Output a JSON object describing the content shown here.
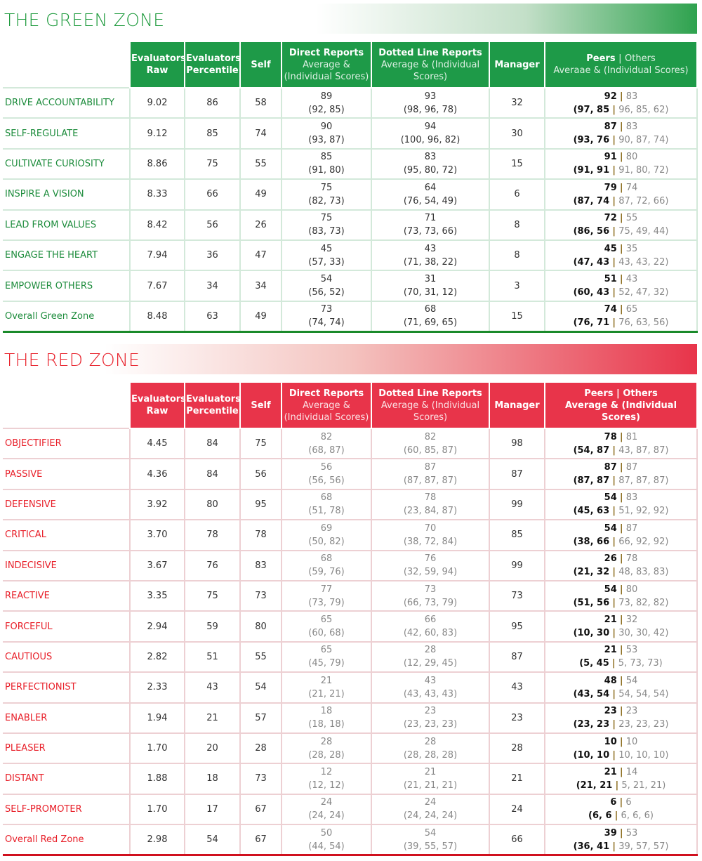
{
  "green_zone": {
    "title": "THE GREEN ZONE",
    "accent": "#1e9a48",
    "headers": {
      "raw": "Evaluators Raw",
      "pct": "Evaluators Percentile",
      "self": "Self",
      "direct": "Direct Reports",
      "direct_sub": "Average & (Individual Scores)",
      "dotted": "Dotted Line Reports",
      "dotted_sub": "Average & (Individual Scores)",
      "manager": "Manager",
      "peers": "Peers",
      "peers_sep": "|",
      "others": "Others",
      "peers_sub": "Averaae & (Individual Scores)"
    },
    "rows": [
      {
        "label": "DRIVE ACCOUNTABILITY",
        "raw": "9.02",
        "pct": "86",
        "self": "58",
        "d_avg": "89",
        "d_ind": "(92, 85)",
        "dl_avg": "93",
        "dl_ind": "(98, 96, 78)",
        "mgr": "32",
        "p_avg": "92",
        "o_avg": "83",
        "p_ind": "(97, 85",
        "o_ind": "96, 85, 62)"
      },
      {
        "label": "SELF-REGULATE",
        "raw": "9.12",
        "pct": "85",
        "self": "74",
        "d_avg": "90",
        "d_ind": "(93, 87)",
        "dl_avg": "94",
        "dl_ind": "(100, 96, 82)",
        "mgr": "30",
        "p_avg": "87",
        "o_avg": "83",
        "p_ind": "(93, 76",
        "o_ind": "90, 87, 74)"
      },
      {
        "label": "CULTIVATE CURIOSITY",
        "raw": "8.86",
        "pct": "75",
        "self": "55",
        "d_avg": "85",
        "d_ind": "(91, 80)",
        "dl_avg": "83",
        "dl_ind": "(95, 80, 72)",
        "mgr": "15",
        "p_avg": "91",
        "o_avg": "80",
        "p_ind": "(91, 91",
        "o_ind": "91, 80, 72)"
      },
      {
        "label": "INSPIRE A VISION",
        "raw": "8.33",
        "pct": "66",
        "self": "49",
        "d_avg": "75",
        "d_ind": "(82, 73)",
        "dl_avg": "64",
        "dl_ind": "(76, 54, 49)",
        "mgr": "6",
        "p_avg": "79",
        "o_avg": "74",
        "p_ind": "(87, 74",
        "o_ind": "87, 72, 66)"
      },
      {
        "label": "LEAD FROM VALUES",
        "raw": "8.42",
        "pct": "56",
        "self": "26",
        "d_avg": "75",
        "d_ind": "(83, 73)",
        "dl_avg": "71",
        "dl_ind": "(73, 73, 66)",
        "mgr": "8",
        "p_avg": "72",
        "o_avg": "55",
        "p_ind": "(86, 56",
        "o_ind": "75, 49, 44)"
      },
      {
        "label": "ENGAGE THE HEART",
        "raw": "7.94",
        "pct": "36",
        "self": "47",
        "d_avg": "45",
        "d_ind": "(57, 33)",
        "dl_avg": "43",
        "dl_ind": "(71, 38, 22)",
        "mgr": "8",
        "p_avg": "45",
        "o_avg": "35",
        "p_ind": "(47, 43",
        "o_ind": "43, 43, 22)"
      },
      {
        "label": "EMPOWER OTHERS",
        "raw": "7.67",
        "pct": "34",
        "self": "34",
        "d_avg": "54",
        "d_ind": "(56, 52)",
        "dl_avg": "31",
        "dl_ind": "(70, 31, 12)",
        "mgr": "3",
        "p_avg": "51",
        "o_avg": "43",
        "p_ind": "(60, 43",
        "o_ind": "52, 47, 32)"
      }
    ],
    "total": {
      "label": "Overall Green Zone",
      "raw": "8.48",
      "pct": "63",
      "self": "49",
      "d_avg": "73",
      "d_ind": "(74, 74)",
      "dl_avg": "68",
      "dl_ind": "(71, 69, 65)",
      "mgr": "15",
      "p_avg": "74",
      "o_avg": "65",
      "p_ind": "(76, 71",
      "o_ind": "76, 63, 56)"
    }
  },
  "red_zone": {
    "title": "THE RED ZONE",
    "accent": "#e8344a",
    "headers": {
      "raw": "Evaluators Raw",
      "pct": "Evaluators Percentile",
      "self": "Self",
      "direct": "Direct Reports",
      "direct_sub": "Average & (Individual Scores)",
      "dotted": "Dotted Line Reports",
      "dotted_sub": "Average & (Individual Scores)",
      "manager": "Manager",
      "peers": "Peers",
      "peers_sep": "|",
      "others": "Others",
      "peers_sub": "Average & (Individual Scores)"
    },
    "rows": [
      {
        "label": "OBJECTIFIER",
        "raw": "4.45",
        "pct": "84",
        "self": "75",
        "d_avg": "82",
        "d_ind": "(68, 87)",
        "dl_avg": "82",
        "dl_ind": "(60, 85, 87)",
        "mgr": "98",
        "p_avg": "78",
        "o_avg": "81",
        "p_ind": "(54, 87",
        "o_ind": "43, 87, 87)"
      },
      {
        "label": "PASSIVE",
        "raw": "4.36",
        "pct": "84",
        "self": "56",
        "d_avg": "56",
        "d_ind": "(56, 56)",
        "dl_avg": "87",
        "dl_ind": "(87, 87, 87)",
        "mgr": "87",
        "p_avg": "87",
        "o_avg": "87",
        "p_ind": "(87, 87",
        "o_ind": "87, 87, 87)"
      },
      {
        "label": "DEFENSIVE",
        "raw": "3.92",
        "pct": "80",
        "self": "95",
        "d_avg": "68",
        "d_ind": "(51, 78)",
        "dl_avg": "78",
        "dl_ind": "(23, 84, 87)",
        "mgr": "99",
        "p_avg": "54",
        "o_avg": "83",
        "p_ind": "(45, 63",
        "o_ind": "51, 92, 92)"
      },
      {
        "label": "CRITICAL",
        "raw": "3.70",
        "pct": "78",
        "self": "78",
        "d_avg": "69",
        "d_ind": "(50, 82)",
        "dl_avg": "70",
        "dl_ind": "(38, 72, 84)",
        "mgr": "85",
        "p_avg": "54",
        "o_avg": "87",
        "p_ind": "(38, 66",
        "o_ind": "66, 92, 92)"
      },
      {
        "label": "INDECISIVE",
        "raw": "3.67",
        "pct": "76",
        "self": "83",
        "d_avg": "68",
        "d_ind": "(59, 76)",
        "dl_avg": "76",
        "dl_ind": "(32, 59, 94)",
        "mgr": "99",
        "p_avg": "26",
        "o_avg": "78",
        "p_ind": "(21, 32",
        "o_ind": "48, 83, 83)"
      },
      {
        "label": "REACTIVE",
        "raw": "3.35",
        "pct": "75",
        "self": "73",
        "d_avg": "77",
        "d_ind": "(73, 79)",
        "dl_avg": "73",
        "dl_ind": "(66, 73, 79)",
        "mgr": "73",
        "p_avg": "54",
        "o_avg": "80",
        "p_ind": "(51, 56",
        "o_ind": "73, 82, 82)"
      },
      {
        "label": "FORCEFUL",
        "raw": "2.94",
        "pct": "59",
        "self": "80",
        "d_avg": "65",
        "d_ind": "(60, 68)",
        "dl_avg": "66",
        "dl_ind": "(42, 60, 83)",
        "mgr": "95",
        "p_avg": "21",
        "o_avg": "32",
        "p_ind": "(10, 30",
        "o_ind": "30, 30, 42)"
      },
      {
        "label": "CAUTIOUS",
        "raw": "2.82",
        "pct": "51",
        "self": "55",
        "d_avg": "65",
        "d_ind": "(45, 79)",
        "dl_avg": "28",
        "dl_ind": "(12, 29, 45)",
        "mgr": "87",
        "p_avg": "21",
        "o_avg": "53",
        "p_ind": "(5, 45",
        "o_ind": "5, 73, 73)"
      },
      {
        "label": "PERFECTIONIST",
        "raw": "2.33",
        "pct": "43",
        "self": "54",
        "d_avg": "21",
        "d_ind": "(21, 21)",
        "dl_avg": "43",
        "dl_ind": "(43, 43, 43)",
        "mgr": "43",
        "p_avg": "48",
        "o_avg": "54",
        "p_ind": "(43, 54",
        "o_ind": "54, 54, 54)"
      },
      {
        "label": "ENABLER",
        "raw": "1.94",
        "pct": "21",
        "self": "57",
        "d_avg": "18",
        "d_ind": "(18, 18)",
        "dl_avg": "23",
        "dl_ind": "(23, 23, 23)",
        "mgr": "23",
        "p_avg": "23",
        "o_avg": "23",
        "p_ind": "(23, 23",
        "o_ind": "23, 23, 23)"
      },
      {
        "label": "PLEASER",
        "raw": "1.70",
        "pct": "20",
        "self": "28",
        "d_avg": "28",
        "d_ind": "(28, 28)",
        "dl_avg": "28",
        "dl_ind": "(28, 28, 28)",
        "mgr": "28",
        "p_avg": "10",
        "o_avg": "10",
        "p_ind": "(10, 10",
        "o_ind": "10, 10, 10)"
      },
      {
        "label": "DISTANT",
        "raw": "1.88",
        "pct": "18",
        "self": "73",
        "d_avg": "12",
        "d_ind": "(12, 12)",
        "dl_avg": "21",
        "dl_ind": "(21, 21, 21)",
        "mgr": "21",
        "p_avg": "21",
        "o_avg": "14",
        "p_ind": "(21, 21",
        "o_ind": "5, 21, 21)"
      },
      {
        "label": "SELF-PROMOTER",
        "raw": "1.70",
        "pct": "17",
        "self": "67",
        "d_avg": "24",
        "d_ind": "(24, 24)",
        "dl_avg": "24",
        "dl_ind": "(24, 24, 24)",
        "mgr": "24",
        "p_avg": "6",
        "o_avg": "6",
        "p_ind": "(6, 6",
        "o_ind": "6, 6, 6)"
      }
    ],
    "total": {
      "label": "Overall Red Zone",
      "raw": "2.98",
      "pct": "54",
      "self": "67",
      "d_avg": "50",
      "d_ind": "(44, 54)",
      "dl_avg": "54",
      "dl_ind": "(39, 55, 57)",
      "mgr": "66",
      "p_avg": "39",
      "o_avg": "53",
      "p_ind": "(36, 41",
      "o_ind": "39, 57, 57)"
    }
  }
}
